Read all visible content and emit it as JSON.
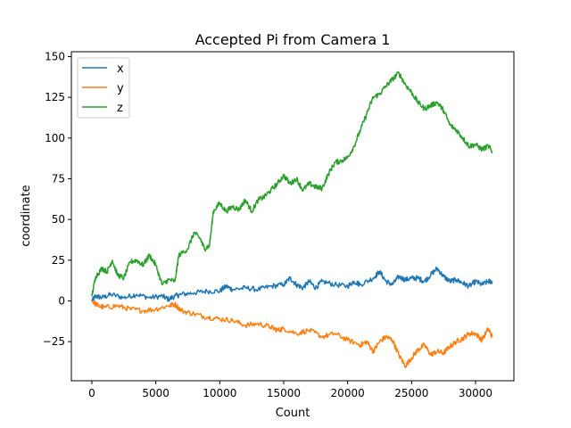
{
  "chart_data": {
    "type": "line",
    "title": "Accepted Pi from Camera 1",
    "xlabel": "Count",
    "ylabel": "coordinate",
    "xlim": [
      -1600,
      33000
    ],
    "ylim": [
      -49,
      153
    ],
    "xticks": [
      0,
      5000,
      10000,
      15000,
      20000,
      25000,
      30000
    ],
    "yticks": [
      -25,
      0,
      25,
      50,
      75,
      100,
      125,
      150
    ],
    "legend_position": "upper-left",
    "grid": false,
    "series": [
      {
        "name": "x",
        "color": "#1f77b4",
        "points": [
          [
            0,
            0
          ],
          [
            300,
            3
          ],
          [
            800,
            2
          ],
          [
            1500,
            4
          ],
          [
            2500,
            2
          ],
          [
            3500,
            4
          ],
          [
            4500,
            2
          ],
          [
            5500,
            3
          ],
          [
            6000,
            1
          ],
          [
            6500,
            3
          ],
          [
            7000,
            4
          ],
          [
            8000,
            5
          ],
          [
            9000,
            6
          ],
          [
            10000,
            6
          ],
          [
            10500,
            9
          ],
          [
            11000,
            7
          ],
          [
            12000,
            8
          ],
          [
            13000,
            7
          ],
          [
            14000,
            9
          ],
          [
            15000,
            10
          ],
          [
            15500,
            14
          ],
          [
            16000,
            10
          ],
          [
            16500,
            8
          ],
          [
            17000,
            12
          ],
          [
            17500,
            8
          ],
          [
            18000,
            12
          ],
          [
            19000,
            10
          ],
          [
            20000,
            9
          ],
          [
            20500,
            12
          ],
          [
            21000,
            10
          ],
          [
            22000,
            14
          ],
          [
            22500,
            18
          ],
          [
            23000,
            12
          ],
          [
            23500,
            10
          ],
          [
            24000,
            15
          ],
          [
            24500,
            13
          ],
          [
            25000,
            14
          ],
          [
            25500,
            14
          ],
          [
            26000,
            12
          ],
          [
            26500,
            16
          ],
          [
            27000,
            20
          ],
          [
            27500,
            15
          ],
          [
            28000,
            12
          ],
          [
            28500,
            13
          ],
          [
            29000,
            11
          ],
          [
            29500,
            9
          ],
          [
            30000,
            12
          ],
          [
            30500,
            10
          ],
          [
            31000,
            12
          ],
          [
            31300,
            12
          ]
        ]
      },
      {
        "name": "y",
        "color": "#ff7f0e",
        "points": [
          [
            0,
            0
          ],
          [
            500,
            -3
          ],
          [
            1000,
            -4
          ],
          [
            2000,
            -3
          ],
          [
            3000,
            -5
          ],
          [
            4000,
            -6
          ],
          [
            5000,
            -5
          ],
          [
            6000,
            -3
          ],
          [
            6500,
            -2
          ],
          [
            7000,
            -6
          ],
          [
            8000,
            -8
          ],
          [
            9000,
            -10
          ],
          [
            10000,
            -11
          ],
          [
            11000,
            -12
          ],
          [
            12000,
            -15
          ],
          [
            13000,
            -14
          ],
          [
            14000,
            -16
          ],
          [
            14500,
            -18
          ],
          [
            15000,
            -17
          ],
          [
            16000,
            -20
          ],
          [
            17000,
            -18
          ],
          [
            18000,
            -22
          ],
          [
            19000,
            -20
          ],
          [
            20000,
            -24
          ],
          [
            21000,
            -27
          ],
          [
            21500,
            -25
          ],
          [
            22000,
            -31
          ],
          [
            22500,
            -25
          ],
          [
            23000,
            -22
          ],
          [
            23500,
            -24
          ],
          [
            24000,
            -33
          ],
          [
            24500,
            -40
          ],
          [
            25000,
            -35
          ],
          [
            25500,
            -30
          ],
          [
            26000,
            -27
          ],
          [
            26500,
            -33
          ],
          [
            27000,
            -31
          ],
          [
            27500,
            -32
          ],
          [
            28000,
            -28
          ],
          [
            28500,
            -25
          ],
          [
            29000,
            -23
          ],
          [
            29500,
            -20
          ],
          [
            30000,
            -20
          ],
          [
            30500,
            -24
          ],
          [
            31000,
            -17
          ],
          [
            31300,
            -22
          ]
        ]
      },
      {
        "name": "z",
        "color": "#2ca02c",
        "points": [
          [
            0,
            3
          ],
          [
            300,
            15
          ],
          [
            800,
            20
          ],
          [
            1200,
            18
          ],
          [
            1600,
            25
          ],
          [
            2000,
            16
          ],
          [
            2500,
            14
          ],
          [
            3000,
            24
          ],
          [
            3500,
            25
          ],
          [
            4000,
            22
          ],
          [
            4500,
            28
          ],
          [
            5000,
            22
          ],
          [
            5500,
            10
          ],
          [
            6000,
            13
          ],
          [
            6500,
            12
          ],
          [
            6800,
            28
          ],
          [
            7500,
            32
          ],
          [
            8000,
            42
          ],
          [
            8500,
            38
          ],
          [
            8800,
            32
          ],
          [
            9200,
            34
          ],
          [
            9500,
            55
          ],
          [
            10000,
            60
          ],
          [
            10500,
            55
          ],
          [
            11000,
            58
          ],
          [
            11500,
            56
          ],
          [
            12000,
            62
          ],
          [
            12500,
            55
          ],
          [
            13000,
            62
          ],
          [
            13500,
            64
          ],
          [
            14000,
            68
          ],
          [
            14500,
            72
          ],
          [
            15000,
            77
          ],
          [
            15500,
            72
          ],
          [
            16000,
            75
          ],
          [
            16500,
            68
          ],
          [
            17000,
            72
          ],
          [
            17500,
            70
          ],
          [
            18000,
            69
          ],
          [
            18500,
            78
          ],
          [
            19000,
            85
          ],
          [
            19500,
            86
          ],
          [
            20000,
            88
          ],
          [
            20500,
            95
          ],
          [
            21000,
            105
          ],
          [
            21500,
            115
          ],
          [
            22000,
            125
          ],
          [
            22500,
            127
          ],
          [
            23000,
            132
          ],
          [
            23500,
            136
          ],
          [
            24000,
            140
          ],
          [
            24500,
            133
          ],
          [
            25000,
            128
          ],
          [
            25500,
            122
          ],
          [
            26000,
            118
          ],
          [
            26500,
            120
          ],
          [
            27000,
            122
          ],
          [
            27500,
            117
          ],
          [
            28000,
            108
          ],
          [
            28500,
            105
          ],
          [
            29000,
            100
          ],
          [
            29500,
            95
          ],
          [
            30000,
            96
          ],
          [
            30500,
            93
          ],
          [
            31000,
            95
          ],
          [
            31300,
            92
          ]
        ]
      }
    ]
  }
}
